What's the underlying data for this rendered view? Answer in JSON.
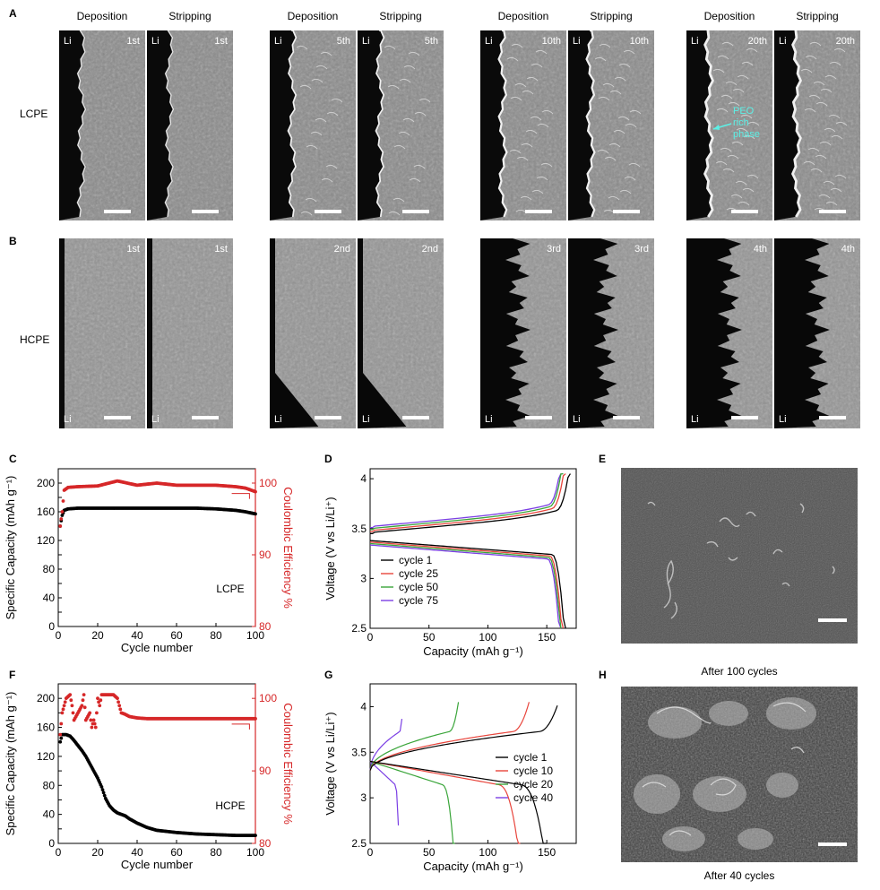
{
  "panels": {
    "A": "A",
    "B": "B",
    "C": "C",
    "D": "D",
    "E": "E",
    "F": "F",
    "G": "G",
    "H": "H"
  },
  "headers": {
    "deposition": "Deposition",
    "stripping": "Stripping"
  },
  "rows": {
    "lcpe": "LCPE",
    "hcpe": "HCPE"
  },
  "li": "Li",
  "rowA_cycles": [
    "1st",
    "5th",
    "10th",
    "20th"
  ],
  "rowB_cycles": [
    "1st",
    "2nd",
    "3rd",
    "4th"
  ],
  "annotation": {
    "line1": "PEO",
    "line2": "rich",
    "line3": "phase"
  },
  "captions": {
    "E": "After 100 cycles",
    "H": "After 40 cycles"
  },
  "colors": {
    "coulombic": "#d62728",
    "black": "#000000",
    "annotation": "#5cf0e6"
  },
  "chart_data": [
    {
      "type": "scatter",
      "panel": "C",
      "xlabel": "Cycle number",
      "ylabel": "Specific Capacity (mAh g⁻¹)",
      "y2label": "Coulombic Efficiency %",
      "xlim": [
        0,
        100
      ],
      "ylim": [
        0,
        220
      ],
      "y2lim": [
        80,
        102
      ],
      "xticks": [
        0,
        20,
        40,
        60,
        80,
        100
      ],
      "yticks": [
        0,
        20,
        40,
        60,
        80,
        100,
        120,
        140,
        160,
        180,
        200
      ],
      "y2ticks": [
        80,
        90,
        100
      ],
      "label": "LCPE",
      "series": [
        {
          "axis": "left",
          "x": [
            1,
            2,
            3,
            5,
            10,
            20,
            30,
            40,
            50,
            60,
            70,
            80,
            85,
            90,
            95,
            100
          ],
          "values": [
            140,
            155,
            162,
            164,
            165,
            165,
            165,
            165,
            165,
            165,
            165,
            164,
            163,
            162,
            160,
            157
          ]
        },
        {
          "axis": "right",
          "x": [
            1,
            2,
            3,
            5,
            10,
            20,
            30,
            40,
            50,
            60,
            70,
            80,
            85,
            90,
            95,
            100
          ],
          "values": [
            94,
            96,
            99,
            99.4,
            99.5,
            99.6,
            100.3,
            99.7,
            100,
            99.7,
            99.7,
            99.7,
            99.6,
            99.5,
            99.3,
            98.8
          ]
        }
      ]
    },
    {
      "type": "line",
      "panel": "D",
      "xlabel": "Capacity (mAh g⁻¹)",
      "ylabel": "Voltage (V vs Li/Li⁺)",
      "xlim": [
        0,
        175
      ],
      "ylim": [
        2.5,
        4.1
      ],
      "xticks": [
        0,
        50,
        100,
        150
      ],
      "yticks": [
        2.5,
        3.0,
        3.5,
        4.0
      ],
      "legend_position": "bottom-left",
      "series": [
        {
          "name": "cycle 1",
          "color": "#000000",
          "charge_end": 170,
          "discharge_end": 166
        },
        {
          "name": "cycle 25",
          "color": "#e8453c",
          "charge_end": 166,
          "discharge_end": 164
        },
        {
          "name": "cycle 50",
          "color": "#3aa53a",
          "charge_end": 164,
          "discharge_end": 163
        },
        {
          "name": "cycle 75",
          "color": "#7b3fe4",
          "charge_end": 163,
          "discharge_end": 162
        }
      ]
    },
    {
      "type": "scatter",
      "panel": "F",
      "xlabel": "Cycle number",
      "ylabel": "Specific Capacity (mAh g⁻¹)",
      "y2label": "Coulombic Efficiency %",
      "xlim": [
        0,
        100
      ],
      "ylim": [
        0,
        220
      ],
      "y2lim": [
        80,
        102
      ],
      "xticks": [
        0,
        20,
        40,
        60,
        80,
        100
      ],
      "yticks": [
        0,
        20,
        40,
        60,
        80,
        100,
        120,
        140,
        160,
        180,
        200
      ],
      "y2ticks": [
        80,
        90,
        100
      ],
      "label": "HCPE",
      "series": [
        {
          "axis": "left",
          "x": [
            1,
            2,
            4,
            6,
            8,
            10,
            12,
            14,
            16,
            18,
            20,
            22,
            24,
            26,
            28,
            30,
            32,
            34,
            36,
            40,
            45,
            50,
            60,
            70,
            80,
            90,
            100
          ],
          "values": [
            140,
            150,
            150,
            148,
            142,
            135,
            128,
            120,
            110,
            100,
            90,
            78,
            62,
            52,
            46,
            42,
            40,
            38,
            34,
            28,
            22,
            18,
            15,
            13,
            12,
            11,
            11
          ]
        },
        {
          "axis": "right",
          "x": [
            1,
            2,
            4,
            6,
            7,
            8,
            10,
            12,
            13,
            14,
            16,
            17,
            18,
            19,
            20,
            21,
            22,
            24,
            26,
            28,
            30,
            32,
            34,
            36,
            40,
            45,
            50,
            60,
            70,
            80,
            90,
            100
          ],
          "values": [
            95,
            98,
            100,
            100.5,
            99,
            97,
            98,
            99,
            100.5,
            97,
            98,
            96,
            97,
            96,
            100,
            99,
            100.5,
            100.5,
            100.5,
            100.5,
            100,
            98,
            97.8,
            97.5,
            97.3,
            97.2,
            97.2,
            97.2,
            97.2,
            97.2,
            97.2,
            97.2
          ]
        }
      ]
    },
    {
      "type": "line",
      "panel": "G",
      "xlabel": "Capacity (mAh g⁻¹)",
      "ylabel": "Voltage (V vs Li/Li⁺)",
      "xlim": [
        0,
        175
      ],
      "ylim": [
        2.5,
        4.25
      ],
      "xticks": [
        0,
        50,
        100,
        150
      ],
      "yticks": [
        2.5,
        3.0,
        3.5,
        4.0
      ],
      "legend_position": "right",
      "series": [
        {
          "name": "cycle 1",
          "color": "#000000",
          "charge_end": 160,
          "discharge_end": 150
        },
        {
          "name": "cycle 10",
          "color": "#e8453c",
          "charge_end": 135,
          "discharge_end": 128
        },
        {
          "name": "cycle 20",
          "color": "#3aa53a",
          "charge_end": 75,
          "discharge_end": 72
        },
        {
          "name": "cycle 40",
          "color": "#7b3fe4",
          "charge_end": 28,
          "discharge_end": 25
        }
      ]
    }
  ]
}
